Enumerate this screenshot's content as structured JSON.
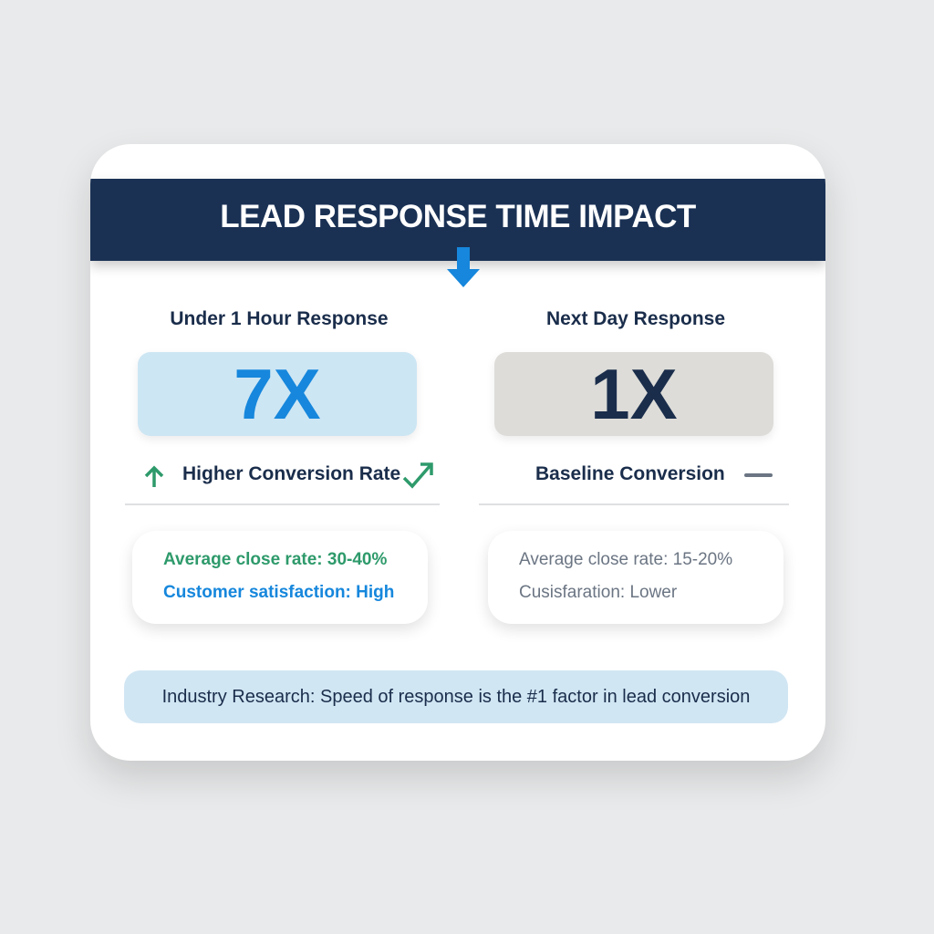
{
  "title": "LEAD RESPONSE TIME IMPACT",
  "left": {
    "heading": "Under 1 Hour Response",
    "multiplier": "7X",
    "label": "Higher Conversion Rate",
    "stats": [
      "Average close rate: 30-40%",
      "Customer satisfaction: High"
    ]
  },
  "right": {
    "heading": "Next Day Response",
    "multiplier": "1X",
    "label": "Baseline Conversion",
    "stats": [
      "Average close rate: 15-20%",
      "Cusisfaration: Lower"
    ]
  },
  "footer": "Industry Research: Speed of response is the #1 factor in lead conversion",
  "colors": {
    "navy": "#1a3154",
    "blue": "#1687dc",
    "green": "#2e9a6b",
    "gray": "#6b7583"
  },
  "icons": [
    "arrow-down-icon",
    "arrow-up-icon",
    "trend-up-icon",
    "dash-icon"
  ]
}
